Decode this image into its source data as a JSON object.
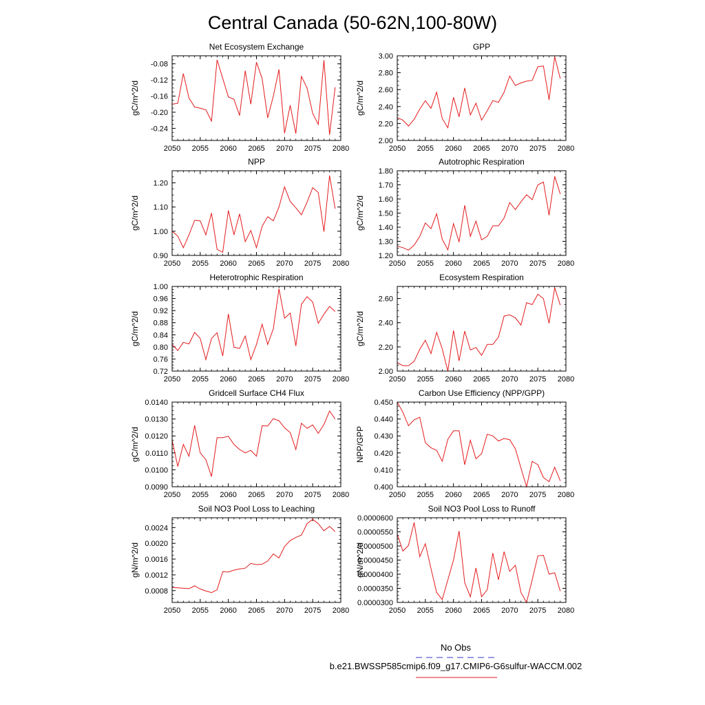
{
  "title": "Central Canada (50-62N,100-80W)",
  "legend": {
    "obs_label": "No Obs",
    "obs_color": "#3333cc",
    "model_label": "b.e21.BWSSP585cmip6.f09_g17.CMIP6-G6sulfur-WACCM.002",
    "model_color": "#e31a1c"
  },
  "chart_data": [
    {
      "type": "line",
      "title": "Net Ecosystem Exchange",
      "ylabel": "gC/m^2/d",
      "xlim": [
        2050,
        2080
      ],
      "xticks": [
        "2050",
        "2055",
        "2060",
        "2065",
        "2070",
        "2075",
        "2080"
      ],
      "ylim": [
        -0.27,
        -0.06
      ],
      "yticks": [
        "-0.08",
        "-0.12",
        "-0.16",
        "-0.20",
        "-0.24"
      ],
      "x": [
        2050,
        2051,
        2052,
        2053,
        2054,
        2055,
        2056,
        2057,
        2058,
        2059,
        2060,
        2061,
        2062,
        2063,
        2064,
        2065,
        2066,
        2067,
        2068,
        2069,
        2070,
        2071,
        2072,
        2073,
        2074,
        2075,
        2076,
        2077,
        2078,
        2079
      ],
      "series": [
        {
          "values": [
            -0.18,
            -0.178,
            -0.104,
            -0.165,
            -0.187,
            -0.19,
            -0.194,
            -0.222,
            -0.07,
            -0.116,
            -0.162,
            -0.168,
            -0.208,
            -0.097,
            -0.18,
            -0.076,
            -0.116,
            -0.214,
            -0.16,
            -0.094,
            -0.252,
            -0.183,
            -0.253,
            -0.111,
            -0.14,
            -0.203,
            -0.23,
            -0.071,
            -0.256,
            -0.138
          ]
        }
      ]
    },
    {
      "type": "line",
      "title": "GPP",
      "ylabel": "gC/m^2/d",
      "xlim": [
        2050,
        2080
      ],
      "xticks": [
        "2050",
        "2055",
        "2060",
        "2065",
        "2070",
        "2075",
        "2080"
      ],
      "ylim": [
        2.0,
        3.0
      ],
      "yticks": [
        "2.00",
        "2.20",
        "2.40",
        "2.60",
        "2.80",
        "3.00"
      ],
      "x": [
        2050,
        2051,
        2052,
        2053,
        2054,
        2055,
        2056,
        2057,
        2058,
        2059,
        2060,
        2061,
        2062,
        2063,
        2064,
        2065,
        2066,
        2067,
        2068,
        2069,
        2070,
        2071,
        2072,
        2073,
        2074,
        2075,
        2076,
        2077,
        2078,
        2079
      ],
      "series": [
        {
          "values": [
            2.27,
            2.24,
            2.17,
            2.25,
            2.37,
            2.47,
            2.38,
            2.57,
            2.26,
            2.15,
            2.51,
            2.28,
            2.62,
            2.3,
            2.44,
            2.24,
            2.35,
            2.47,
            2.45,
            2.57,
            2.76,
            2.65,
            2.68,
            2.7,
            2.71,
            2.87,
            2.88,
            2.48,
            2.99,
            2.73
          ]
        }
      ]
    },
    {
      "type": "line",
      "title": "NPP",
      "ylabel": "gC/m^2/d",
      "xlim": [
        2050,
        2080
      ],
      "xticks": [
        "2050",
        "2055",
        "2060",
        "2065",
        "2070",
        "2075",
        "2080"
      ],
      "ylim": [
        0.9,
        1.25
      ],
      "yticks": [
        "0.90",
        "1.00",
        "1.10",
        "1.20"
      ],
      "x": [
        2050,
        2051,
        2052,
        2053,
        2054,
        2055,
        2056,
        2057,
        2058,
        2059,
        2060,
        2061,
        2062,
        2063,
        2064,
        2065,
        2066,
        2067,
        2068,
        2069,
        2070,
        2071,
        2072,
        2073,
        2074,
        2075,
        2076,
        2077,
        2078,
        2079
      ],
      "series": [
        {
          "values": [
            1.0,
            0.98,
            0.932,
            0.985,
            1.045,
            1.043,
            0.985,
            1.075,
            0.925,
            0.913,
            1.086,
            0.985,
            1.072,
            0.957,
            1.003,
            0.932,
            1.02,
            1.06,
            1.043,
            1.1,
            1.183,
            1.123,
            1.097,
            1.068,
            1.12,
            1.18,
            1.16,
            0.998,
            1.23,
            1.093
          ]
        }
      ]
    },
    {
      "type": "line",
      "title": "Autotrophic Respiration",
      "ylabel": "gC/m^2/d",
      "xlim": [
        2050,
        2080
      ],
      "xticks": [
        "2050",
        "2055",
        "2060",
        "2065",
        "2070",
        "2075",
        "2080"
      ],
      "ylim": [
        1.2,
        1.8
      ],
      "yticks": [
        "1.20",
        "1.30",
        "1.40",
        "1.50",
        "1.60",
        "1.70",
        "1.80"
      ],
      "x": [
        2050,
        2051,
        2052,
        2053,
        2054,
        2055,
        2056,
        2057,
        2058,
        2059,
        2060,
        2061,
        2062,
        2063,
        2064,
        2065,
        2066,
        2067,
        2068,
        2069,
        2070,
        2071,
        2072,
        2073,
        2074,
        2075,
        2076,
        2077,
        2078,
        2079
      ],
      "series": [
        {
          "values": [
            1.265,
            1.255,
            1.237,
            1.272,
            1.335,
            1.43,
            1.39,
            1.495,
            1.315,
            1.24,
            1.425,
            1.295,
            1.555,
            1.335,
            1.443,
            1.31,
            1.335,
            1.41,
            1.41,
            1.465,
            1.575,
            1.525,
            1.58,
            1.63,
            1.595,
            1.7,
            1.72,
            1.485,
            1.76,
            1.635
          ]
        }
      ]
    },
    {
      "type": "line",
      "title": "Heterotrophic Respiration",
      "ylabel": "gC/m^2/d",
      "xlim": [
        2050,
        2080
      ],
      "xticks": [
        "2050",
        "2055",
        "2060",
        "2065",
        "2070",
        "2075",
        "2080"
      ],
      "ylim": [
        0.72,
        1.0
      ],
      "yticks": [
        "0.72",
        "0.76",
        "0.80",
        "0.84",
        "0.88",
        "0.92",
        "0.96",
        "1.00"
      ],
      "x": [
        2050,
        2051,
        2052,
        2053,
        2054,
        2055,
        2056,
        2057,
        2058,
        2059,
        2060,
        2061,
        2062,
        2063,
        2064,
        2065,
        2066,
        2067,
        2068,
        2069,
        2070,
        2071,
        2072,
        2073,
        2074,
        2075,
        2076,
        2077,
        2078,
        2079
      ],
      "series": [
        {
          "values": [
            0.808,
            0.788,
            0.815,
            0.81,
            0.848,
            0.828,
            0.758,
            0.828,
            0.847,
            0.77,
            0.909,
            0.799,
            0.795,
            0.836,
            0.758,
            0.808,
            0.875,
            0.808,
            0.86,
            0.992,
            0.895,
            0.912,
            0.803,
            0.941,
            0.966,
            0.948,
            0.878,
            0.908,
            0.934,
            0.917
          ]
        }
      ]
    },
    {
      "type": "line",
      "title": "Ecosystem Respiration",
      "ylabel": "gC/m^2/d",
      "xlim": [
        2050,
        2080
      ],
      "xticks": [
        "2050",
        "2055",
        "2060",
        "2065",
        "2070",
        "2075",
        "2080"
      ],
      "ylim": [
        2.0,
        2.7
      ],
      "yticks": [
        "2.00",
        "2.20",
        "2.40",
        "2.60"
      ],
      "x": [
        2050,
        2051,
        2052,
        2053,
        2054,
        2055,
        2056,
        2057,
        2058,
        2059,
        2060,
        2061,
        2062,
        2063,
        2064,
        2065,
        2066,
        2067,
        2068,
        2069,
        2070,
        2071,
        2072,
        2073,
        2074,
        2075,
        2076,
        2077,
        2078,
        2079
      ],
      "series": [
        {
          "values": [
            2.07,
            2.045,
            2.045,
            2.08,
            2.18,
            2.255,
            2.145,
            2.32,
            2.185,
            2.0,
            2.335,
            2.085,
            2.33,
            2.175,
            2.195,
            2.13,
            2.22,
            2.22,
            2.28,
            2.455,
            2.465,
            2.44,
            2.38,
            2.565,
            2.55,
            2.635,
            2.6,
            2.395,
            2.69,
            2.545
          ]
        }
      ]
    },
    {
      "type": "line",
      "title": "Gridcell Surface CH4 Flux",
      "ylabel": "gC/m^2/d",
      "xlim": [
        2050,
        2080
      ],
      "xticks": [
        "2050",
        "2055",
        "2060",
        "2065",
        "2070",
        "2075",
        "2080"
      ],
      "ylim": [
        0.009,
        0.014
      ],
      "yticks": [
        "0.0090",
        "0.0100",
        "0.0110",
        "0.0120",
        "0.0130",
        "0.0140"
      ],
      "x": [
        2050,
        2051,
        2052,
        2053,
        2054,
        2055,
        2056,
        2057,
        2058,
        2059,
        2060,
        2061,
        2062,
        2063,
        2064,
        2065,
        2066,
        2067,
        2068,
        2069,
        2070,
        2071,
        2072,
        2073,
        2074,
        2075,
        2076,
        2077,
        2078,
        2079
      ],
      "series": [
        {
          "values": [
            0.01175,
            0.0102,
            0.0115,
            0.0108,
            0.01262,
            0.011,
            0.0106,
            0.0096,
            0.0119,
            0.0119,
            0.01198,
            0.0115,
            0.0112,
            0.011,
            0.01115,
            0.0108,
            0.0126,
            0.01258,
            0.01302,
            0.0129,
            0.01248,
            0.0122,
            0.0112,
            0.01275,
            0.01245,
            0.01265,
            0.01215,
            0.01268,
            0.01347,
            0.013
          ]
        }
      ]
    },
    {
      "type": "line",
      "title": "Carbon Use Efficiency (NPP/GPP)",
      "ylabel": "NPP/GPP",
      "xlim": [
        2050,
        2080
      ],
      "xticks": [
        "2050",
        "2055",
        "2060",
        "2065",
        "2070",
        "2075",
        "2080"
      ],
      "ylim": [
        0.4,
        0.45
      ],
      "yticks": [
        "0.400",
        "0.410",
        "0.420",
        "0.430",
        "0.440",
        "0.450"
      ],
      "x": [
        2050,
        2051,
        2052,
        2053,
        2054,
        2055,
        2056,
        2057,
        2058,
        2059,
        2060,
        2061,
        2062,
        2063,
        2064,
        2065,
        2066,
        2067,
        2068,
        2069,
        2070,
        2071,
        2072,
        2073,
        2074,
        2075,
        2076,
        2077,
        2078,
        2079
      ],
      "series": [
        {
          "values": [
            0.45,
            0.444,
            0.436,
            0.4395,
            0.441,
            0.426,
            0.423,
            0.4215,
            0.415,
            0.428,
            0.433,
            0.433,
            0.413,
            0.4275,
            0.4165,
            0.4195,
            0.431,
            0.43,
            0.427,
            0.4285,
            0.4278,
            0.4225,
            0.411,
            0.4,
            0.415,
            0.413,
            0.4055,
            0.403,
            0.4115,
            0.4035
          ]
        }
      ]
    },
    {
      "type": "line",
      "title": "Soil NO3 Pool Loss to Leaching",
      "ylabel": "gN/m^2/d",
      "xlim": [
        2050,
        2080
      ],
      "xticks": [
        "2050",
        "2055",
        "2060",
        "2065",
        "2070",
        "2075",
        "2080"
      ],
      "ylim": [
        0.0005,
        0.00265
      ],
      "yticks": [
        "0.0008",
        "0.0012",
        "0.0016",
        "0.0020",
        "0.0024"
      ],
      "x": [
        2050,
        2051,
        2052,
        2053,
        2054,
        2055,
        2056,
        2057,
        2058,
        2059,
        2060,
        2061,
        2062,
        2063,
        2064,
        2065,
        2066,
        2067,
        2068,
        2069,
        2070,
        2071,
        2072,
        2073,
        2074,
        2075,
        2076,
        2077,
        2078,
        2079
      ],
      "series": [
        {
          "values": [
            0.00088,
            0.00087,
            0.00086,
            0.00085,
            0.00092,
            0.00084,
            0.00079,
            0.00075,
            0.00082,
            0.00128,
            0.00127,
            0.00132,
            0.00135,
            0.00137,
            0.00149,
            0.00146,
            0.00147,
            0.00155,
            0.00173,
            0.00163,
            0.00192,
            0.00207,
            0.00215,
            0.00221,
            0.0025,
            0.00261,
            0.0025,
            0.00232,
            0.00243,
            0.0023
          ]
        }
      ]
    },
    {
      "type": "line",
      "title": "Soil NO3 Pool Loss to Runoff",
      "ylabel": "gN/m^2/d",
      "xlim": [
        2050,
        2080
      ],
      "xticks": [
        "2050",
        "2055",
        "2060",
        "2065",
        "2070",
        "2075",
        "2080"
      ],
      "ylim": [
        3e-05,
        6e-05
      ],
      "yticks": [
        "0.0000300",
        "0.0000350",
        "0.0000400",
        "0.0000450",
        "0.0000500",
        "0.0000550",
        "0.0000600"
      ],
      "x": [
        2050,
        2051,
        2052,
        2053,
        2054,
        2055,
        2056,
        2057,
        2058,
        2059,
        2060,
        2061,
        2062,
        2063,
        2064,
        2065,
        2066,
        2067,
        2068,
        2069,
        2070,
        2071,
        2072,
        2073,
        2074,
        2075,
        2076,
        2077,
        2078,
        2079
      ],
      "series": [
        {
          "values": [
            5.42e-05,
            4.82e-05,
            5.02e-05,
            5.83e-05,
            4.62e-05,
            5.08e-05,
            4.2e-05,
            3.35e-05,
            3.1e-05,
            3.8e-05,
            4.5e-05,
            5.53e-05,
            3.7e-05,
            3.2e-05,
            4.22e-05,
            3.2e-05,
            3.45e-05,
            4.75e-05,
            3.8e-05,
            4.8e-05,
            4.1e-05,
            4.32e-05,
            3.35e-05,
            3e-05,
            3.8e-05,
            4.65e-05,
            4.67e-05,
            4e-05,
            4.05e-05,
            3.4e-05
          ]
        }
      ]
    }
  ]
}
